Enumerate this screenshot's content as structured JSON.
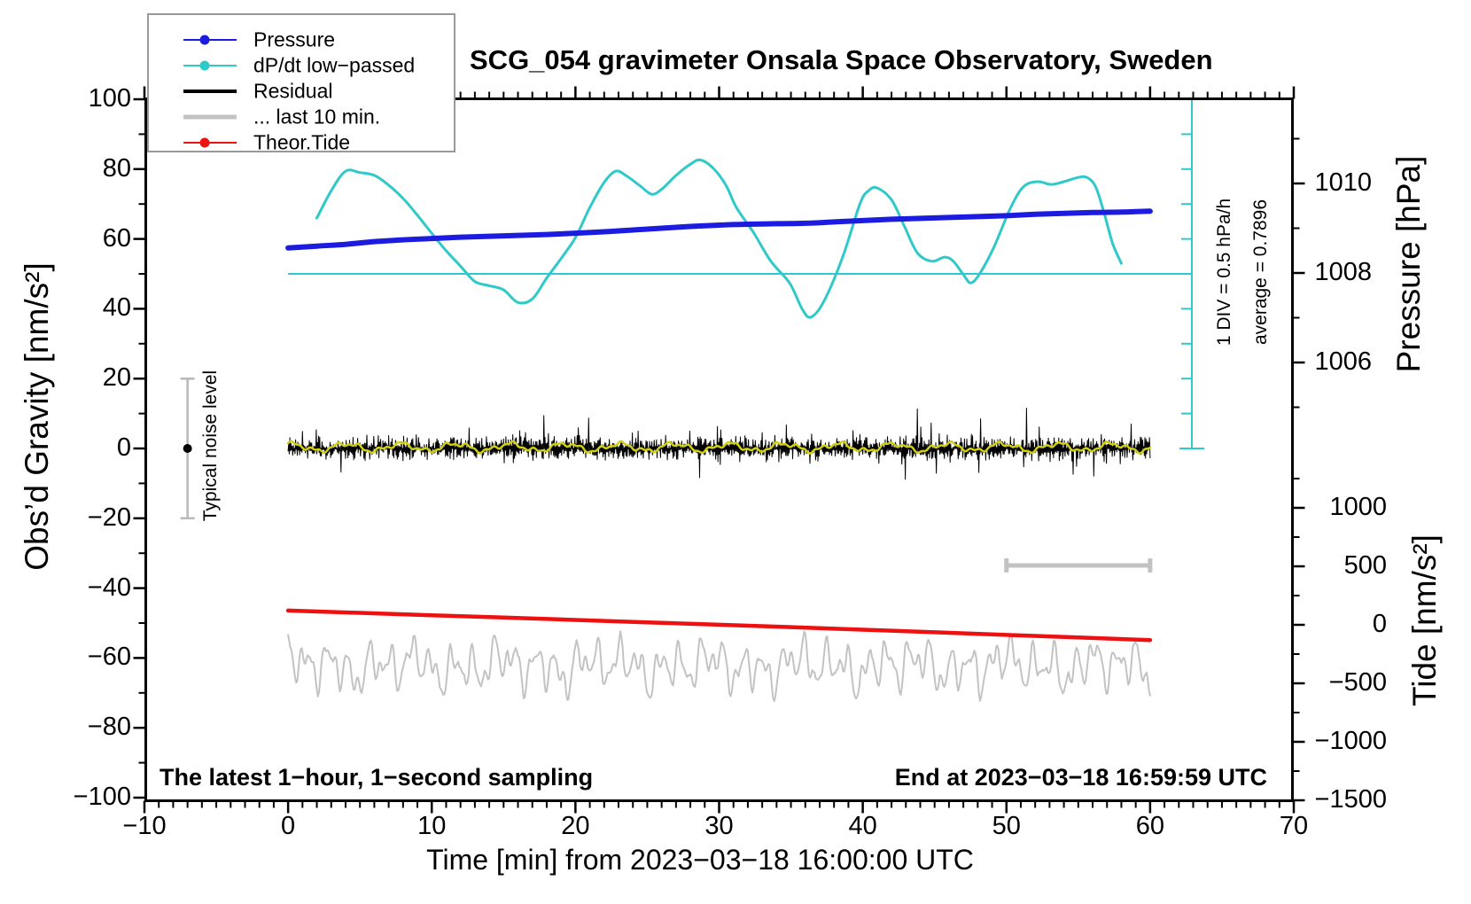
{
  "title": "SCG_054 gravimeter Onsala Space Observatory, Sweden",
  "notes": {
    "sampling": "The latest 1−hour, 1−second sampling",
    "end": "End at 2023−03−18 16:59:59 UTC",
    "div_scale": "1 DIV = 0.5 hPa/h",
    "average": "average = 0.7896",
    "noise_level": "Typical noise level"
  },
  "legend": {
    "items": [
      {
        "label": "Pressure",
        "color": "#1c1ce0",
        "style": "thin-dot",
        "thickness": 2
      },
      {
        "label": "dP/dt low−passed",
        "color": "#2fc9c9",
        "style": "thin-dot",
        "thickness": 2
      },
      {
        "label": "Residual",
        "color": "#000000",
        "style": "thick",
        "thickness": 4
      },
      {
        "label": "... last 10 min.",
        "color": "#c3c3c3",
        "style": "thick",
        "thickness": 5
      },
      {
        "label": "Theor.Tide",
        "color": "#ee1111",
        "style": "thin-dot",
        "thickness": 2
      }
    ]
  },
  "axes": {
    "x": {
      "label": "Time [min] from 2023−03−18 16:00:00 UTC",
      "min": -10,
      "max": 70,
      "major_ticks": [
        -10,
        0,
        10,
        20,
        30,
        40,
        50,
        60,
        70
      ],
      "minor_step": 1
    },
    "gravity": {
      "label": "Obs’d Gravity [nm/s²]",
      "min": -100,
      "max": 100,
      "major_ticks": [
        100,
        80,
        60,
        40,
        20,
        0,
        -20,
        -40,
        -60,
        -80,
        -100
      ],
      "minor_step": 10
    },
    "pressure": {
      "label": "Pressure [hPa]",
      "major_ticks": [
        1010,
        1008,
        1006
      ],
      "minor_ticks": [
        1011,
        1009,
        1007,
        1005
      ]
    },
    "tide": {
      "label": "Tide [nm/s²]",
      "major_ticks": [
        1000,
        500,
        0,
        -500,
        -1000,
        -1500
      ],
      "minor_ticks": [
        1250,
        750,
        250,
        -250,
        -750,
        -1250
      ]
    }
  },
  "chart_data": {
    "type": "line",
    "x_unit": "min",
    "x_range": [
      0,
      60
    ],
    "series": [
      {
        "name": "Pressure",
        "unit": "hPa",
        "color": "#1c1ce0",
        "axis": "pressure",
        "points": [
          [
            0,
            1008.56
          ],
          [
            2,
            1008.6
          ],
          [
            4,
            1008.64
          ],
          [
            6,
            1008.7
          ],
          [
            8,
            1008.74
          ],
          [
            10,
            1008.77
          ],
          [
            12,
            1008.8
          ],
          [
            14,
            1008.82
          ],
          [
            16,
            1008.84
          ],
          [
            18,
            1008.86
          ],
          [
            20,
            1008.89
          ],
          [
            22,
            1008.92
          ],
          [
            24,
            1008.96
          ],
          [
            26,
            1009.0
          ],
          [
            28,
            1009.04
          ],
          [
            30,
            1009.07
          ],
          [
            32,
            1009.09
          ],
          [
            34,
            1009.1
          ],
          [
            36,
            1009.11
          ],
          [
            38,
            1009.14
          ],
          [
            40,
            1009.17
          ],
          [
            42,
            1009.2
          ],
          [
            44,
            1009.22
          ],
          [
            46,
            1009.24
          ],
          [
            48,
            1009.26
          ],
          [
            50,
            1009.28
          ],
          [
            52,
            1009.31
          ],
          [
            54,
            1009.33
          ],
          [
            56,
            1009.35
          ],
          [
            58,
            1009.36
          ],
          [
            60,
            1009.38
          ]
        ]
      },
      {
        "name": "dP/dt low−passed",
        "unit": "hPa/h",
        "color": "#2fc9c9",
        "axis": "dpdt",
        "average": 0.7896,
        "points": [
          [
            2,
            1.59
          ],
          [
            3,
            1.98
          ],
          [
            4,
            2.26
          ],
          [
            5,
            2.24
          ],
          [
            6,
            2.2
          ],
          [
            7,
            2.06
          ],
          [
            8,
            1.87
          ],
          [
            9,
            1.63
          ],
          [
            10,
            1.37
          ],
          [
            11,
            1.12
          ],
          [
            12,
            0.9
          ],
          [
            13,
            0.68
          ],
          [
            14,
            0.62
          ],
          [
            15,
            0.56
          ],
          [
            16,
            0.38
          ],
          [
            17,
            0.43
          ],
          [
            18,
            0.73
          ],
          [
            19,
            1.01
          ],
          [
            20,
            1.31
          ],
          [
            21,
            1.74
          ],
          [
            22,
            2.1
          ],
          [
            22.8,
            2.26
          ],
          [
            23.5,
            2.2
          ],
          [
            24.5,
            2.05
          ],
          [
            25.3,
            1.93
          ],
          [
            26,
            2.0
          ],
          [
            27,
            2.2
          ],
          [
            28,
            2.36
          ],
          [
            28.7,
            2.42
          ],
          [
            29.6,
            2.3
          ],
          [
            30.5,
            2.05
          ],
          [
            31.2,
            1.74
          ],
          [
            32.4,
            1.38
          ],
          [
            33.6,
            0.97
          ],
          [
            34.9,
            0.66
          ],
          [
            35.8,
            0.28
          ],
          [
            36.4,
            0.17
          ],
          [
            37.3,
            0.4
          ],
          [
            38.6,
            1.03
          ],
          [
            39.8,
            1.79
          ],
          [
            40.4,
            1.98
          ],
          [
            41,
            2.02
          ],
          [
            42,
            1.85
          ],
          [
            42.9,
            1.47
          ],
          [
            43.8,
            1.09
          ],
          [
            44.8,
            0.97
          ],
          [
            45.7,
            1.03
          ],
          [
            46.3,
            0.97
          ],
          [
            47,
            0.78
          ],
          [
            47.5,
            0.66
          ],
          [
            48.1,
            0.78
          ],
          [
            49.1,
            1.16
          ],
          [
            50.3,
            1.74
          ],
          [
            51.2,
            2.04
          ],
          [
            52.2,
            2.11
          ],
          [
            53.1,
            2.07
          ],
          [
            54,
            2.11
          ],
          [
            55,
            2.17
          ],
          [
            55.6,
            2.17
          ],
          [
            56.2,
            2.04
          ],
          [
            56.8,
            1.66
          ],
          [
            57.4,
            1.22
          ],
          [
            58,
            0.94
          ]
        ]
      },
      {
        "name": "Theor.Tide",
        "unit": "nm/s²",
        "color": "#ee1111",
        "axis": "tide",
        "points": [
          [
            0,
            122
          ],
          [
            5,
            102
          ],
          [
            10,
            82
          ],
          [
            15,
            62
          ],
          [
            20,
            42
          ],
          [
            25,
            21
          ],
          [
            30,
            1
          ],
          [
            35,
            -20
          ],
          [
            40,
            -42
          ],
          [
            45,
            -64
          ],
          [
            50,
            -86
          ],
          [
            55,
            -108
          ],
          [
            60,
            -130
          ]
        ]
      },
      {
        "name": "Residual",
        "unit": "nm/s²",
        "color": "#000000",
        "axis": "gravity",
        "synthetic": true,
        "mean": 0,
        "typical_amplitude": 5,
        "max_amplitude": 13
      },
      {
        "name": "Residual smoothed",
        "unit": "nm/s²",
        "color": "#cfcf10",
        "axis": "gravity",
        "synthetic": true,
        "mean": 0.4,
        "amplitude": 1.5
      },
      {
        "name": "... last 10 min.",
        "unit": "nm/s²",
        "color": "#c3c3c3",
        "axis": "gravity",
        "synthetic": true,
        "mean": -62.3,
        "typical_amplitude": 7,
        "max_amplitude": 12
      }
    ],
    "reference_lines": {
      "dpdt_average_level_gravity": 50,
      "dpdt_scale_bar": {
        "divisions": 10,
        "div_value_hpa_per_h": 0.5,
        "gravity_top": 100,
        "gravity_bottom": 0
      },
      "last10_scale_bar": {
        "from_min": 50,
        "to_min": 60,
        "gravity_level": -33.5
      },
      "noise_marker": {
        "x_min": -7,
        "center_gravity": 0,
        "half_range": 20
      }
    }
  }
}
